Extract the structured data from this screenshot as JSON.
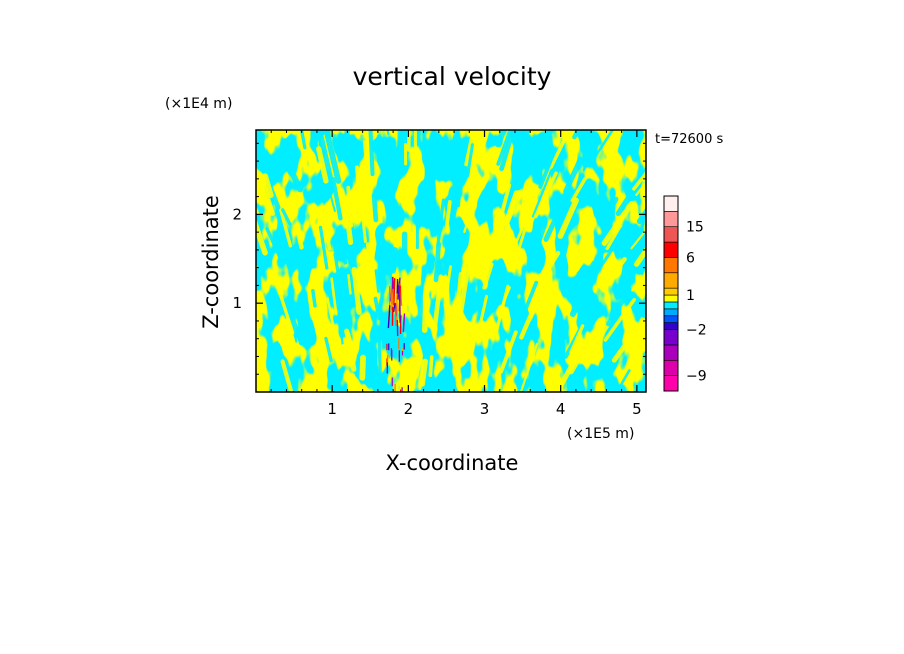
{
  "chart_data": {
    "type": "heatmap",
    "title": "vertical velocity",
    "xlabel": "X-coordinate",
    "ylabel": "Z-coordinate",
    "x_unit": "(×1E5 m)",
    "y_unit": "(×1E4 m)",
    "time_label": "t=72600 s",
    "xlim": [
      0,
      5.12
    ],
    "ylim": [
      0,
      2.95
    ],
    "x_ticks": [
      1,
      2,
      3,
      4,
      5
    ],
    "x_tick_labels": [
      "1",
      "2",
      "3",
      "4",
      "5"
    ],
    "y_ticks": [
      1,
      2
    ],
    "y_tick_labels": [
      "1",
      "2"
    ],
    "field_colors": {
      "positive": "#ffff00",
      "negative": "#00eeff"
    },
    "updraft_core": {
      "x": 1.85,
      "z_top": 1.3
    },
    "colorbar": {
      "levels": [
        -12,
        -9,
        -6,
        -4,
        -2,
        -1,
        -0.5,
        0,
        0.5,
        1,
        2,
        4,
        6,
        10,
        15,
        20,
        30
      ],
      "colors": [
        "#ff00aa",
        "#dd00aa",
        "#aa00bb",
        "#7700cc",
        "#3300cc",
        "#0055ff",
        "#00aaff",
        "#00eeff",
        "#ffff00",
        "#ffcc00",
        "#ffaa00",
        "#ff7700",
        "#ff0000",
        "#ee5555",
        "#ff9999",
        "#fff0ee"
      ],
      "labels": [
        {
          "value": 15,
          "text": "15"
        },
        {
          "value": 6,
          "text": "6"
        },
        {
          "value": 1,
          "text": "1"
        },
        {
          "value": -2,
          "text": "−2"
        },
        {
          "value": -9,
          "text": "−9"
        }
      ]
    }
  }
}
